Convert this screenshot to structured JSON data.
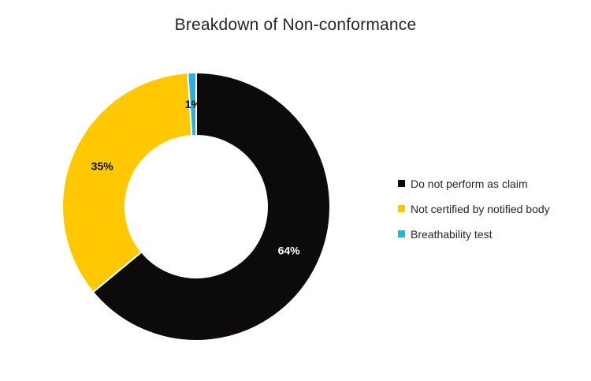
{
  "chart_data": {
    "type": "pie",
    "subtype": "donut",
    "title": "Breakdown of Non-conformance",
    "categories": [
      "Do not perform as claim",
      "Not certified by notified body",
      "Breathability test"
    ],
    "values": [
      64,
      35,
      1
    ],
    "data_labels": [
      "64%",
      "35%",
      "1%"
    ],
    "slice_colors": [
      "#0d0a0b",
      "#ffc800",
      "#2ab0dc"
    ],
    "data_label_colors": [
      "#ffffff",
      "#0d0a0b",
      "#0d0a0b"
    ],
    "start_angle_deg": 0,
    "direction": "clockwise",
    "donut_hole_ratio": 0.53,
    "separator_color": "#ffffff",
    "legend_position": "right",
    "background_color": "#ffffff",
    "text_color": "#262626",
    "grid": false
  }
}
